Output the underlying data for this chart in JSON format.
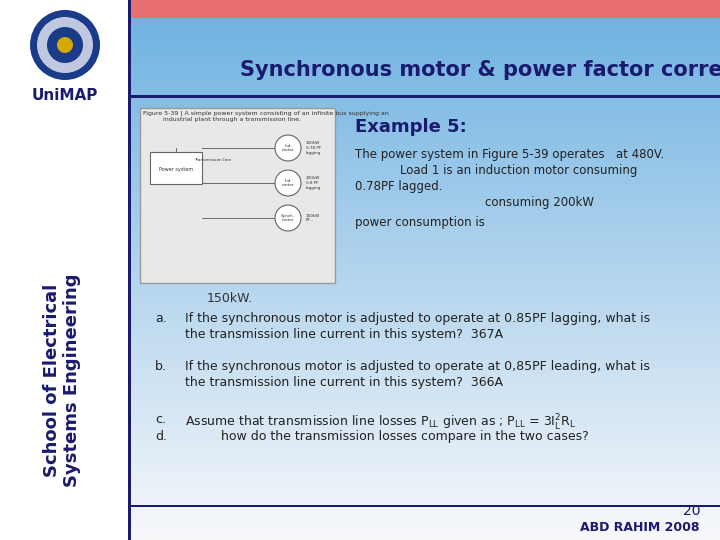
{
  "title": "Synchronous motor & power factor correction",
  "header_bar_color": "#E87070",
  "title_color": "#1a1a6e",
  "footer_number": "20",
  "footer_text": "ABD RAHIM 2008",
  "footer_color": "#1a1a6e",
  "example_title": "Example 5:",
  "desc1": "The power system in Figure 5-39 operates   at 480V.",
  "desc2": "            Load 1 is an induction motor consuming",
  "desc3": "0.78PF lagged.",
  "desc4": "consuming 200kW",
  "desc5": "power consumption is",
  "desc6": "150kW.",
  "item_a_label": "a.",
  "item_a_line1": "If the synchronous motor is adjusted to operate at 0.85PF lagging, what is",
  "item_a_line2": "the transmission line current in this system?  367A",
  "item_b_label": "b.",
  "item_b_line1": "If the synchronous motor is adjusted to operate at 0,85PF leading, what is",
  "item_b_line2": "the transmission line current in this system?  366A",
  "item_c_label": "c.",
  "item_d_label": "d.",
  "item_c_line1": "Assume that transmission line losses P$_{\\rm LL}$ given as ; P$_{\\rm LL}$ = 3I$_{\\rm L}^2$R$_{\\rm L}$",
  "item_d_line1": "         how do the transmission losses compare in the two cases?",
  "fig_caption1": "Figure 5-39 | A simple power system consisting of an infinite bus supplying an",
  "fig_caption2": "          industrial plant through a transmission line."
}
